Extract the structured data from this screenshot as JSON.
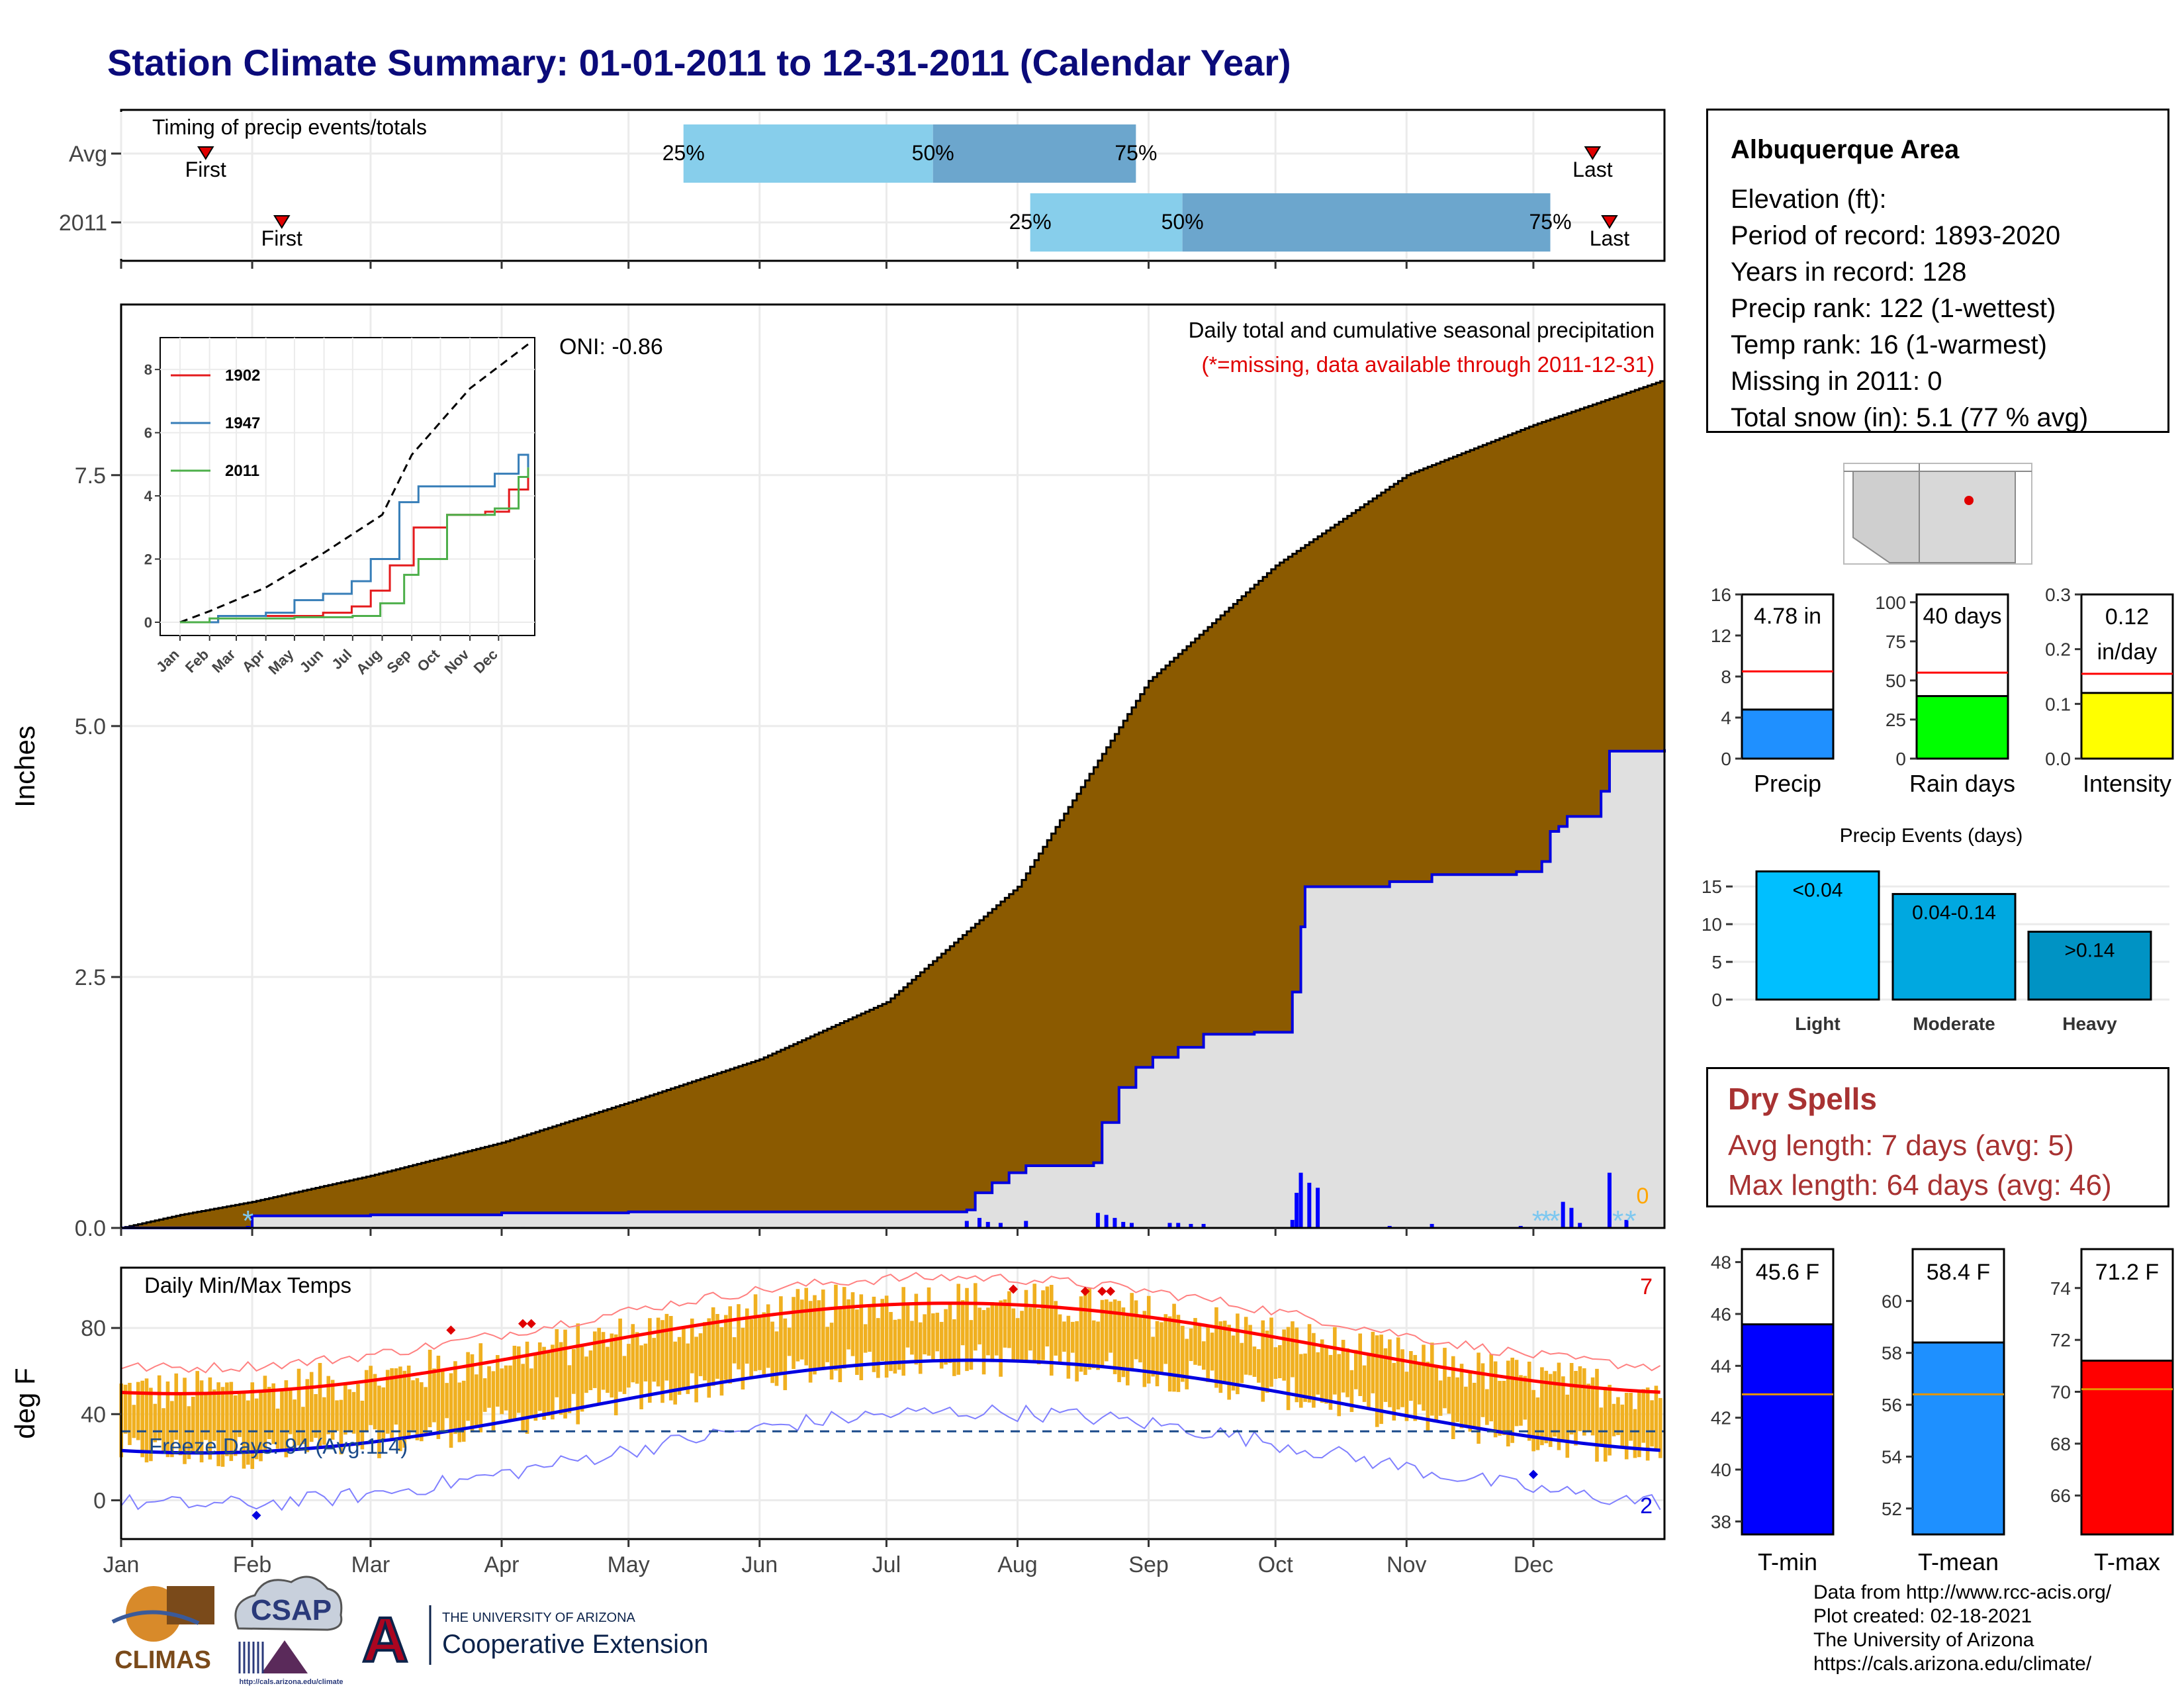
{
  "page_title": "Station Climate Summary: 01-01-2011 to 12-31-2011 (Calendar Year)",
  "timing": {
    "title": "Timing of precip events/totals",
    "rows": [
      {
        "label": "Avg",
        "first_x": 20,
        "last_x": 348,
        "q25": 133,
        "q50": 192,
        "q75": 240
      },
      {
        "label": "2011",
        "first_x": 38,
        "last_x": 352,
        "q25": 215,
        "q50": 251,
        "q75": 338
      }
    ],
    "first_label": "First",
    "last_label": "Last",
    "q25_label": "25%",
    "q50_label": "50%",
    "q75_label": "75%"
  },
  "info": {
    "station": "Albuquerque Area",
    "lines": [
      "Elevation (ft):",
      "Period of record: 1893-2020",
      "Years in record: 128",
      "Precip rank: 122 (1-wettest)",
      "Temp rank: 16 (1-warmest)",
      "Missing in 2011: 0",
      "Total snow (in): 5.1 (77 % avg)"
    ]
  },
  "precip_main": {
    "title": "Daily total and cumulative seasonal precipitation",
    "subtitle": "(*=missing, data available through 2011-12-31)",
    "ylabel": "Inches",
    "oni": "ONI: -0.86",
    "corner_count": "0",
    "y_ticks": [
      "0.0",
      "2.5",
      "5.0",
      "7.5"
    ],
    "y_tick_values": [
      0,
      2.5,
      5,
      7.5
    ],
    "ylim": [
      0,
      9.2
    ],
    "avg_cum_points": [
      [
        0,
        0
      ],
      [
        14,
        0.13
      ],
      [
        31,
        0.26
      ],
      [
        59,
        0.52
      ],
      [
        90,
        0.85
      ],
      [
        120,
        1.25
      ],
      [
        151,
        1.68
      ],
      [
        181,
        2.25
      ],
      [
        212,
        3.4
      ],
      [
        243,
        5.45
      ],
      [
        273,
        6.6
      ],
      [
        304,
        7.5
      ],
      [
        334,
        8.0
      ],
      [
        365,
        8.45
      ]
    ],
    "cum_2011_points": [
      [
        0,
        0
      ],
      [
        31,
        0.09
      ],
      [
        31,
        0.12
      ],
      [
        59,
        0.13
      ],
      [
        90,
        0.15
      ],
      [
        120,
        0.16
      ],
      [
        151,
        0.16
      ],
      [
        181,
        0.16
      ],
      [
        200,
        0.18
      ],
      [
        202,
        0.35
      ],
      [
        206,
        0.45
      ],
      [
        210,
        0.55
      ],
      [
        214,
        0.62
      ],
      [
        230,
        0.65
      ],
      [
        232,
        1.05
      ],
      [
        236,
        1.4
      ],
      [
        240,
        1.6
      ],
      [
        244,
        1.7
      ],
      [
        250,
        1.8
      ],
      [
        256,
        1.93
      ],
      [
        268,
        1.95
      ],
      [
        276,
        1.95
      ],
      [
        277,
        2.35
      ],
      [
        279,
        3.0
      ],
      [
        280,
        3.4
      ],
      [
        300,
        3.45
      ],
      [
        310,
        3.52
      ],
      [
        330,
        3.55
      ],
      [
        336,
        3.65
      ],
      [
        338,
        3.95
      ],
      [
        340,
        4.0
      ],
      [
        342,
        4.1
      ],
      [
        350,
        4.35
      ],
      [
        352,
        4.75
      ],
      [
        365,
        4.77
      ]
    ],
    "daily_bars": [
      [
        30,
        0.02
      ],
      [
        95,
        0.01
      ],
      [
        200,
        0.07
      ],
      [
        203,
        0.1
      ],
      [
        205,
        0.06
      ],
      [
        208,
        0.05
      ],
      [
        214,
        0.07
      ],
      [
        231,
        0.15
      ],
      [
        233,
        0.13
      ],
      [
        235,
        0.1
      ],
      [
        237,
        0.06
      ],
      [
        239,
        0.05
      ],
      [
        248,
        0.05
      ],
      [
        250,
        0.05
      ],
      [
        253,
        0.04
      ],
      [
        256,
        0.04
      ],
      [
        277,
        0.08
      ],
      [
        278,
        0.35
      ],
      [
        279,
        0.55
      ],
      [
        281,
        0.45
      ],
      [
        283,
        0.4
      ],
      [
        300,
        0.02
      ],
      [
        310,
        0.04
      ],
      [
        331,
        0.02
      ],
      [
        341,
        0.26
      ],
      [
        343,
        0.2
      ],
      [
        345,
        0.05
      ],
      [
        352,
        0.55
      ],
      [
        356,
        0.08
      ]
    ],
    "missing_marks": [
      30,
      335,
      337,
      339,
      354,
      357
    ],
    "inset": {
      "y_ticks": [
        "0",
        "2",
        "4",
        "6",
        "8"
      ],
      "x_ticks": [
        "Jan",
        "Feb",
        "Mar",
        "Apr",
        "May",
        "Jun",
        "Jul",
        "Aug",
        "Sep",
        "Oct",
        "Nov",
        "Dec"
      ],
      "legend": [
        {
          "name": "1902",
          "color": "#e41a1c"
        },
        {
          "name": "1947",
          "color": "#377eb8"
        },
        {
          "name": "2011",
          "color": "#4daf4a"
        }
      ]
    }
  },
  "small_bars": [
    {
      "label": "Precip",
      "value_text": "4.78 in",
      "color": "#1f90ff",
      "ticks": [
        "0",
        "4",
        "8",
        "12",
        "16"
      ],
      "max": 16,
      "value": 4.78,
      "avg": 8.5
    },
    {
      "label": "Rain days",
      "value_text": "40 days",
      "color": "#00ff00",
      "ticks": [
        "0",
        "25",
        "50",
        "75",
        "100"
      ],
      "max": 105,
      "value": 40,
      "avg": 55
    },
    {
      "label": "Intensity",
      "value_text": "0.12\nin/day",
      "color": "#ffff00",
      "ticks": [
        "0.0",
        "0.1",
        "0.2",
        "0.3"
      ],
      "max": 0.3,
      "value": 0.12,
      "avg": 0.155
    }
  ],
  "precip_events": {
    "title": "Precip Events (days)",
    "categories": [
      "Light",
      "Moderate",
      "Heavy"
    ],
    "bar_labels": [
      "<0.04",
      "0.04-0.14",
      ">0.14"
    ],
    "values": [
      17,
      14,
      9
    ],
    "colors": [
      "#00bfff",
      "#00a8e0",
      "#0093c4"
    ],
    "ticks": [
      "0",
      "5",
      "10",
      "15"
    ],
    "ymax": 18
  },
  "dry_spells": {
    "title": "Dry Spells",
    "avg_line": "Avg length: 7 days (avg: 5)",
    "max_line": "Max length: 64 days (avg: 46)"
  },
  "temps": {
    "title": "Daily Min/Max Temps",
    "ylabel": "deg F",
    "freeze": "Freeze Days: 94 (Avg:114)",
    "hot_count": "7",
    "cold_count": "2",
    "y_ticks": [
      "0",
      "40",
      "80"
    ],
    "y_tick_values": [
      0,
      40,
      80
    ],
    "ylim": [
      -18,
      108
    ],
    "x_ticks": [
      "Jan",
      "Feb",
      "Mar",
      "Apr",
      "May",
      "Jun",
      "Jul",
      "Aug",
      "Sep",
      "Oct",
      "Nov",
      "Dec"
    ]
  },
  "temp_bars": [
    {
      "label": "T-min",
      "value_text": "45.6 F",
      "color": "#0000ff",
      "ticks": [
        "38",
        "40",
        "42",
        "44",
        "46",
        "48"
      ],
      "tick_values": [
        38,
        40,
        42,
        44,
        46,
        48
      ],
      "min": 37.5,
      "max": 48.5,
      "value": 45.6,
      "avg": 42.9
    },
    {
      "label": "T-mean",
      "value_text": "58.4 F",
      "color": "#1e90ff",
      "ticks": [
        "52",
        "54",
        "56",
        "58",
        "60"
      ],
      "tick_values": [
        52,
        54,
        56,
        58,
        60
      ],
      "min": 51,
      "max": 62,
      "value": 58.4,
      "avg": 56.4
    },
    {
      "label": "T-max",
      "value_text": "71.2 F",
      "color": "#ff0000",
      "ticks": [
        "66",
        "68",
        "70",
        "72",
        "74"
      ],
      "tick_values": [
        66,
        68,
        70,
        72,
        74
      ],
      "min": 64.5,
      "max": 75.5,
      "value": 71.2,
      "avg": 70.1
    }
  ],
  "logos": {
    "climas": "CLIMAS",
    "csap": "CSAP",
    "csap_url": "http://cals.arizona.edu/climate",
    "ua_small": "THE UNIVERSITY OF ARIZONA",
    "ua_big": "Cooperative Extension",
    "ua_mark": "A"
  },
  "credits": [
    "Data from http://www.rcc-acis.org/",
    "Plot created: 02-18-2021",
    "The University of Arizona",
    "https://cals.arizona.edu/climate/"
  ]
}
